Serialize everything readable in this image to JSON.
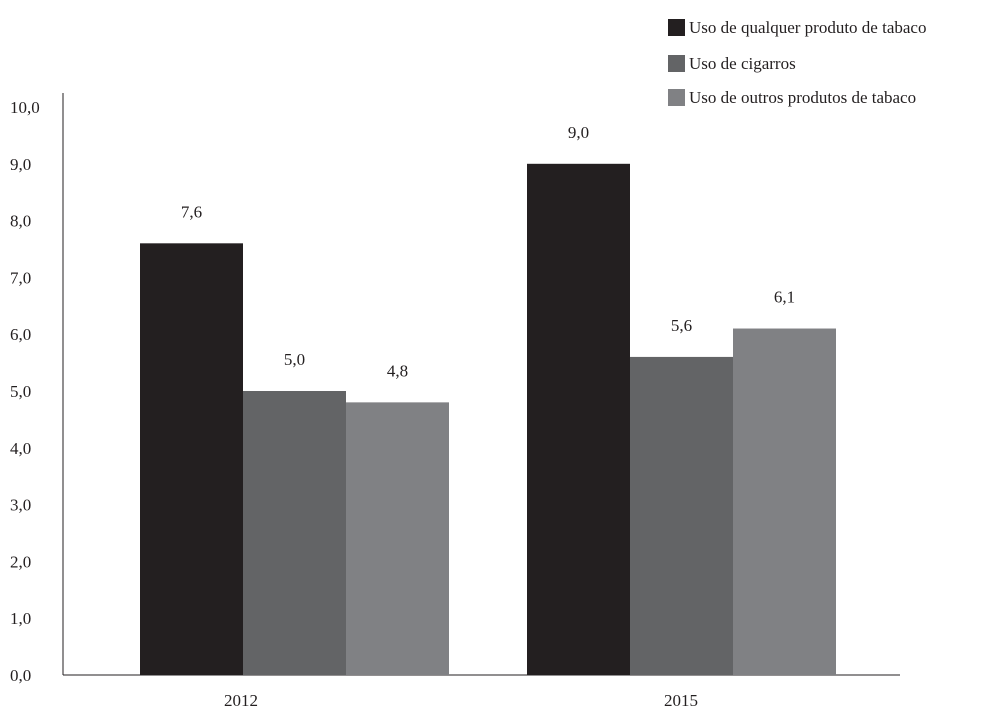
{
  "chart_data": {
    "type": "bar",
    "categories": [
      "2012",
      "2015"
    ],
    "series": [
      {
        "name": "Uso de qualquer produto de tabaco",
        "color": "#231f20",
        "values": [
          7.6,
          9.0
        ],
        "labels": [
          "7,6",
          "9,0"
        ]
      },
      {
        "name": "Uso de cigarros",
        "color": "#636466",
        "values": [
          5.0,
          5.6
        ],
        "labels": [
          "5,0",
          "5,6"
        ]
      },
      {
        "name": "Uso de outros produtos de tabaco",
        "color": "#808184",
        "values": [
          4.8,
          6.1
        ],
        "labels": [
          "4,8",
          "6,1"
        ]
      }
    ],
    "ylim": [
      0,
      10
    ],
    "yticks": [
      0,
      1,
      2,
      3,
      4,
      5,
      6,
      7,
      8,
      9,
      10
    ],
    "ytick_labels": [
      "0,0",
      "1,0",
      "2,0",
      "3,0",
      "4,0",
      "5,0",
      "6,0",
      "7,0",
      "8,0",
      "9,0",
      "10,0"
    ],
    "xlabel": "",
    "ylabel": "",
    "title": "",
    "grid": false,
    "legend_position": "top-right"
  }
}
